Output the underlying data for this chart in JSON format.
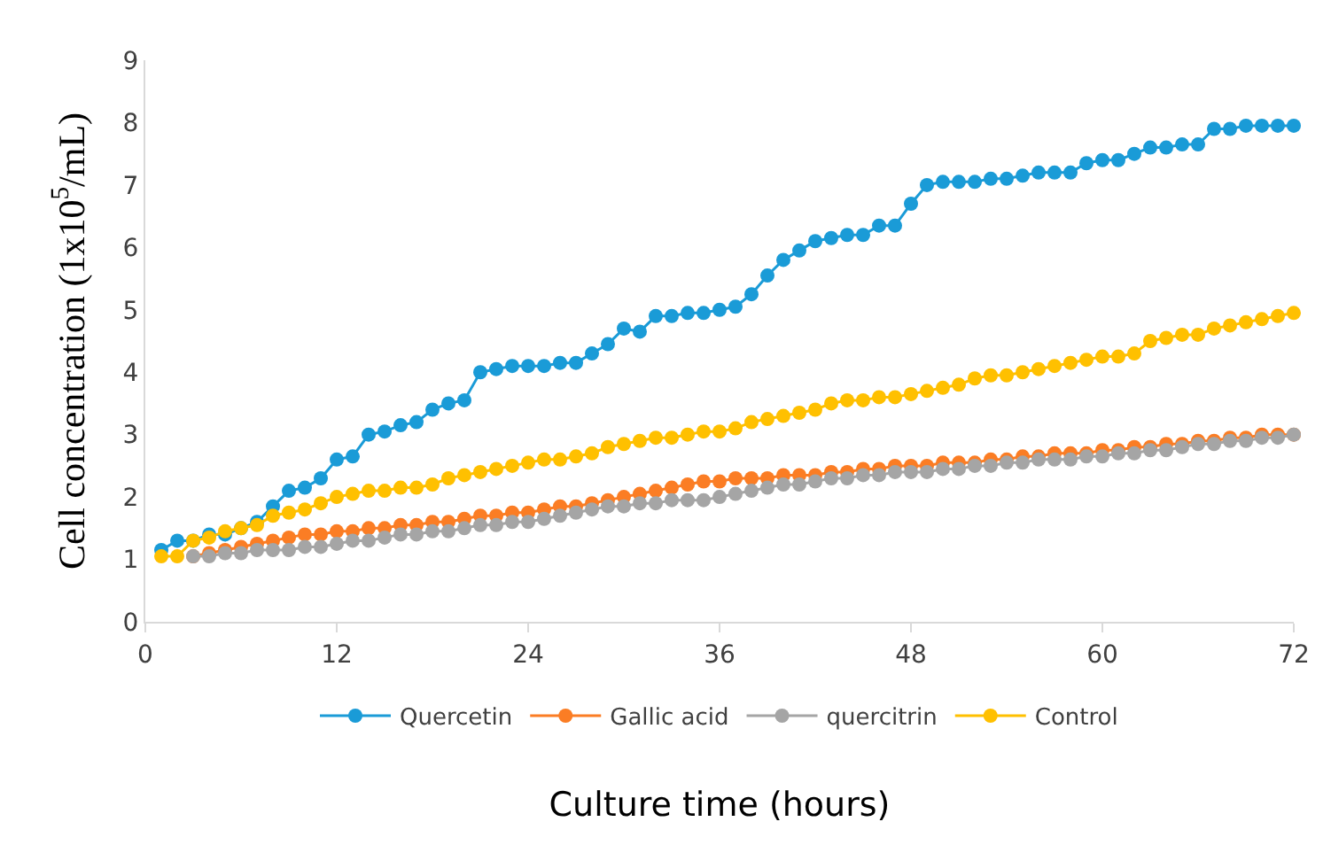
{
  "chart_data": {
    "type": "line",
    "xlabel": "Culture time (hours)",
    "ylabel": "Cell concentration (1x10$^{5}$/mL)",
    "xlim": [
      0,
      72
    ],
    "xticks": [
      0,
      12,
      24,
      36,
      48,
      60,
      72
    ],
    "ylim": [
      0,
      9
    ],
    "yticks": [
      0,
      1,
      2,
      3,
      4,
      5,
      6,
      7,
      8,
      9
    ],
    "grid": false,
    "legend": "bottom",
    "marker": "circle",
    "line_style": "solid",
    "series": [
      {
        "name": "Quercetin",
        "color": "#1a9bd7",
        "x": [
          1,
          2,
          3,
          4,
          5,
          6,
          7,
          8,
          9,
          10,
          11,
          12,
          13,
          14,
          15,
          16,
          17,
          18,
          19,
          20,
          21,
          22,
          23,
          24,
          25,
          26,
          27,
          28,
          29,
          30,
          31,
          32,
          33,
          34,
          35,
          36,
          37,
          38,
          39,
          40,
          41,
          42,
          43,
          44,
          45,
          46,
          47,
          48,
          49,
          50,
          51,
          52,
          53,
          54,
          55,
          56,
          57,
          58,
          59,
          60,
          61,
          62,
          63,
          64,
          65,
          66,
          67,
          68,
          69,
          70,
          71,
          72
        ],
        "values": [
          1.15,
          1.3,
          1.3,
          1.4,
          1.4,
          1.5,
          1.6,
          1.85,
          2.1,
          2.15,
          2.3,
          2.6,
          2.65,
          3.0,
          3.05,
          3.15,
          3.2,
          3.4,
          3.5,
          3.55,
          4.0,
          4.05,
          4.1,
          4.1,
          4.1,
          4.15,
          4.15,
          4.3,
          4.45,
          4.7,
          4.65,
          4.9,
          4.9,
          4.95,
          4.95,
          5.0,
          5.05,
          5.25,
          5.55,
          5.8,
          5.95,
          6.1,
          6.15,
          6.2,
          6.2,
          6.35,
          6.35,
          6.7,
          7.0,
          7.05,
          7.05,
          7.05,
          7.1,
          7.1,
          7.15,
          7.2,
          7.2,
          7.2,
          7.35,
          7.4,
          7.4,
          7.5,
          7.6,
          7.6,
          7.65,
          7.65,
          7.9,
          7.9,
          7.95,
          7.95,
          7.95,
          7.95
        ]
      },
      {
        "name": "Gallic acid",
        "color": "#fb7d24",
        "x": [
          3,
          4,
          5,
          6,
          7,
          8,
          9,
          10,
          11,
          12,
          13,
          14,
          15,
          16,
          17,
          18,
          19,
          20,
          21,
          22,
          23,
          24,
          25,
          26,
          27,
          28,
          29,
          30,
          31,
          32,
          33,
          34,
          35,
          36,
          37,
          38,
          39,
          40,
          41,
          42,
          43,
          44,
          45,
          46,
          47,
          48,
          49,
          50,
          51,
          52,
          53,
          54,
          55,
          56,
          57,
          58,
          59,
          60,
          61,
          62,
          63,
          64,
          65,
          66,
          67,
          68,
          69,
          70,
          71,
          72
        ],
        "values": [
          1.05,
          1.1,
          1.15,
          1.2,
          1.25,
          1.3,
          1.35,
          1.4,
          1.4,
          1.45,
          1.45,
          1.5,
          1.5,
          1.55,
          1.55,
          1.6,
          1.6,
          1.65,
          1.7,
          1.7,
          1.75,
          1.75,
          1.8,
          1.85,
          1.85,
          1.9,
          1.95,
          2.0,
          2.05,
          2.1,
          2.15,
          2.2,
          2.25,
          2.25,
          2.3,
          2.3,
          2.3,
          2.35,
          2.35,
          2.35,
          2.4,
          2.4,
          2.45,
          2.45,
          2.5,
          2.5,
          2.5,
          2.55,
          2.55,
          2.55,
          2.6,
          2.6,
          2.65,
          2.65,
          2.7,
          2.7,
          2.7,
          2.75,
          2.75,
          2.8,
          2.8,
          2.85,
          2.85,
          2.9,
          2.9,
          2.95,
          2.95,
          3.0,
          3.0,
          3.0
        ]
      },
      {
        "name": "quercitrin",
        "color": "#a5a5a5",
        "x": [
          3,
          4,
          5,
          6,
          7,
          8,
          9,
          10,
          11,
          12,
          13,
          14,
          15,
          16,
          17,
          18,
          19,
          20,
          21,
          22,
          23,
          24,
          25,
          26,
          27,
          28,
          29,
          30,
          31,
          32,
          33,
          34,
          35,
          36,
          37,
          38,
          39,
          40,
          41,
          42,
          43,
          44,
          45,
          46,
          47,
          48,
          49,
          50,
          51,
          52,
          53,
          54,
          55,
          56,
          57,
          58,
          59,
          60,
          61,
          62,
          63,
          64,
          65,
          66,
          67,
          68,
          69,
          70,
          71,
          72
        ],
        "values": [
          1.05,
          1.05,
          1.1,
          1.1,
          1.15,
          1.15,
          1.15,
          1.2,
          1.2,
          1.25,
          1.3,
          1.3,
          1.35,
          1.4,
          1.4,
          1.45,
          1.45,
          1.5,
          1.55,
          1.55,
          1.6,
          1.6,
          1.65,
          1.7,
          1.75,
          1.8,
          1.85,
          1.85,
          1.9,
          1.9,
          1.95,
          1.95,
          1.95,
          2.0,
          2.05,
          2.1,
          2.15,
          2.2,
          2.2,
          2.25,
          2.3,
          2.3,
          2.35,
          2.35,
          2.4,
          2.4,
          2.4,
          2.45,
          2.45,
          2.5,
          2.5,
          2.55,
          2.55,
          2.6,
          2.6,
          2.6,
          2.65,
          2.65,
          2.7,
          2.7,
          2.75,
          2.75,
          2.8,
          2.85,
          2.85,
          2.9,
          2.9,
          2.95,
          2.95,
          3.0
        ]
      },
      {
        "name": "Control",
        "color": "#ffc000",
        "x": [
          1,
          2,
          3,
          4,
          5,
          6,
          7,
          8,
          9,
          10,
          11,
          12,
          13,
          14,
          15,
          16,
          17,
          18,
          19,
          20,
          21,
          22,
          23,
          24,
          25,
          26,
          27,
          28,
          29,
          30,
          31,
          32,
          33,
          34,
          35,
          36,
          37,
          38,
          39,
          40,
          41,
          42,
          43,
          44,
          45,
          46,
          47,
          48,
          49,
          50,
          51,
          52,
          53,
          54,
          55,
          56,
          57,
          58,
          59,
          60,
          61,
          62,
          63,
          64,
          65,
          66,
          67,
          68,
          69,
          70,
          71,
          72
        ],
        "values": [
          1.05,
          1.05,
          1.3,
          1.35,
          1.45,
          1.5,
          1.55,
          1.7,
          1.75,
          1.8,
          1.9,
          2.0,
          2.05,
          2.1,
          2.1,
          2.15,
          2.15,
          2.2,
          2.3,
          2.35,
          2.4,
          2.45,
          2.5,
          2.55,
          2.6,
          2.6,
          2.65,
          2.7,
          2.8,
          2.85,
          2.9,
          2.95,
          2.95,
          3.0,
          3.05,
          3.05,
          3.1,
          3.2,
          3.25,
          3.3,
          3.35,
          3.4,
          3.5,
          3.55,
          3.55,
          3.6,
          3.6,
          3.65,
          3.7,
          3.75,
          3.8,
          3.9,
          3.95,
          3.95,
          4.0,
          4.05,
          4.1,
          4.15,
          4.2,
          4.25,
          4.25,
          4.3,
          4.5,
          4.55,
          4.6,
          4.6,
          4.7,
          4.75,
          4.8,
          4.85,
          4.9,
          4.95
        ]
      }
    ]
  }
}
